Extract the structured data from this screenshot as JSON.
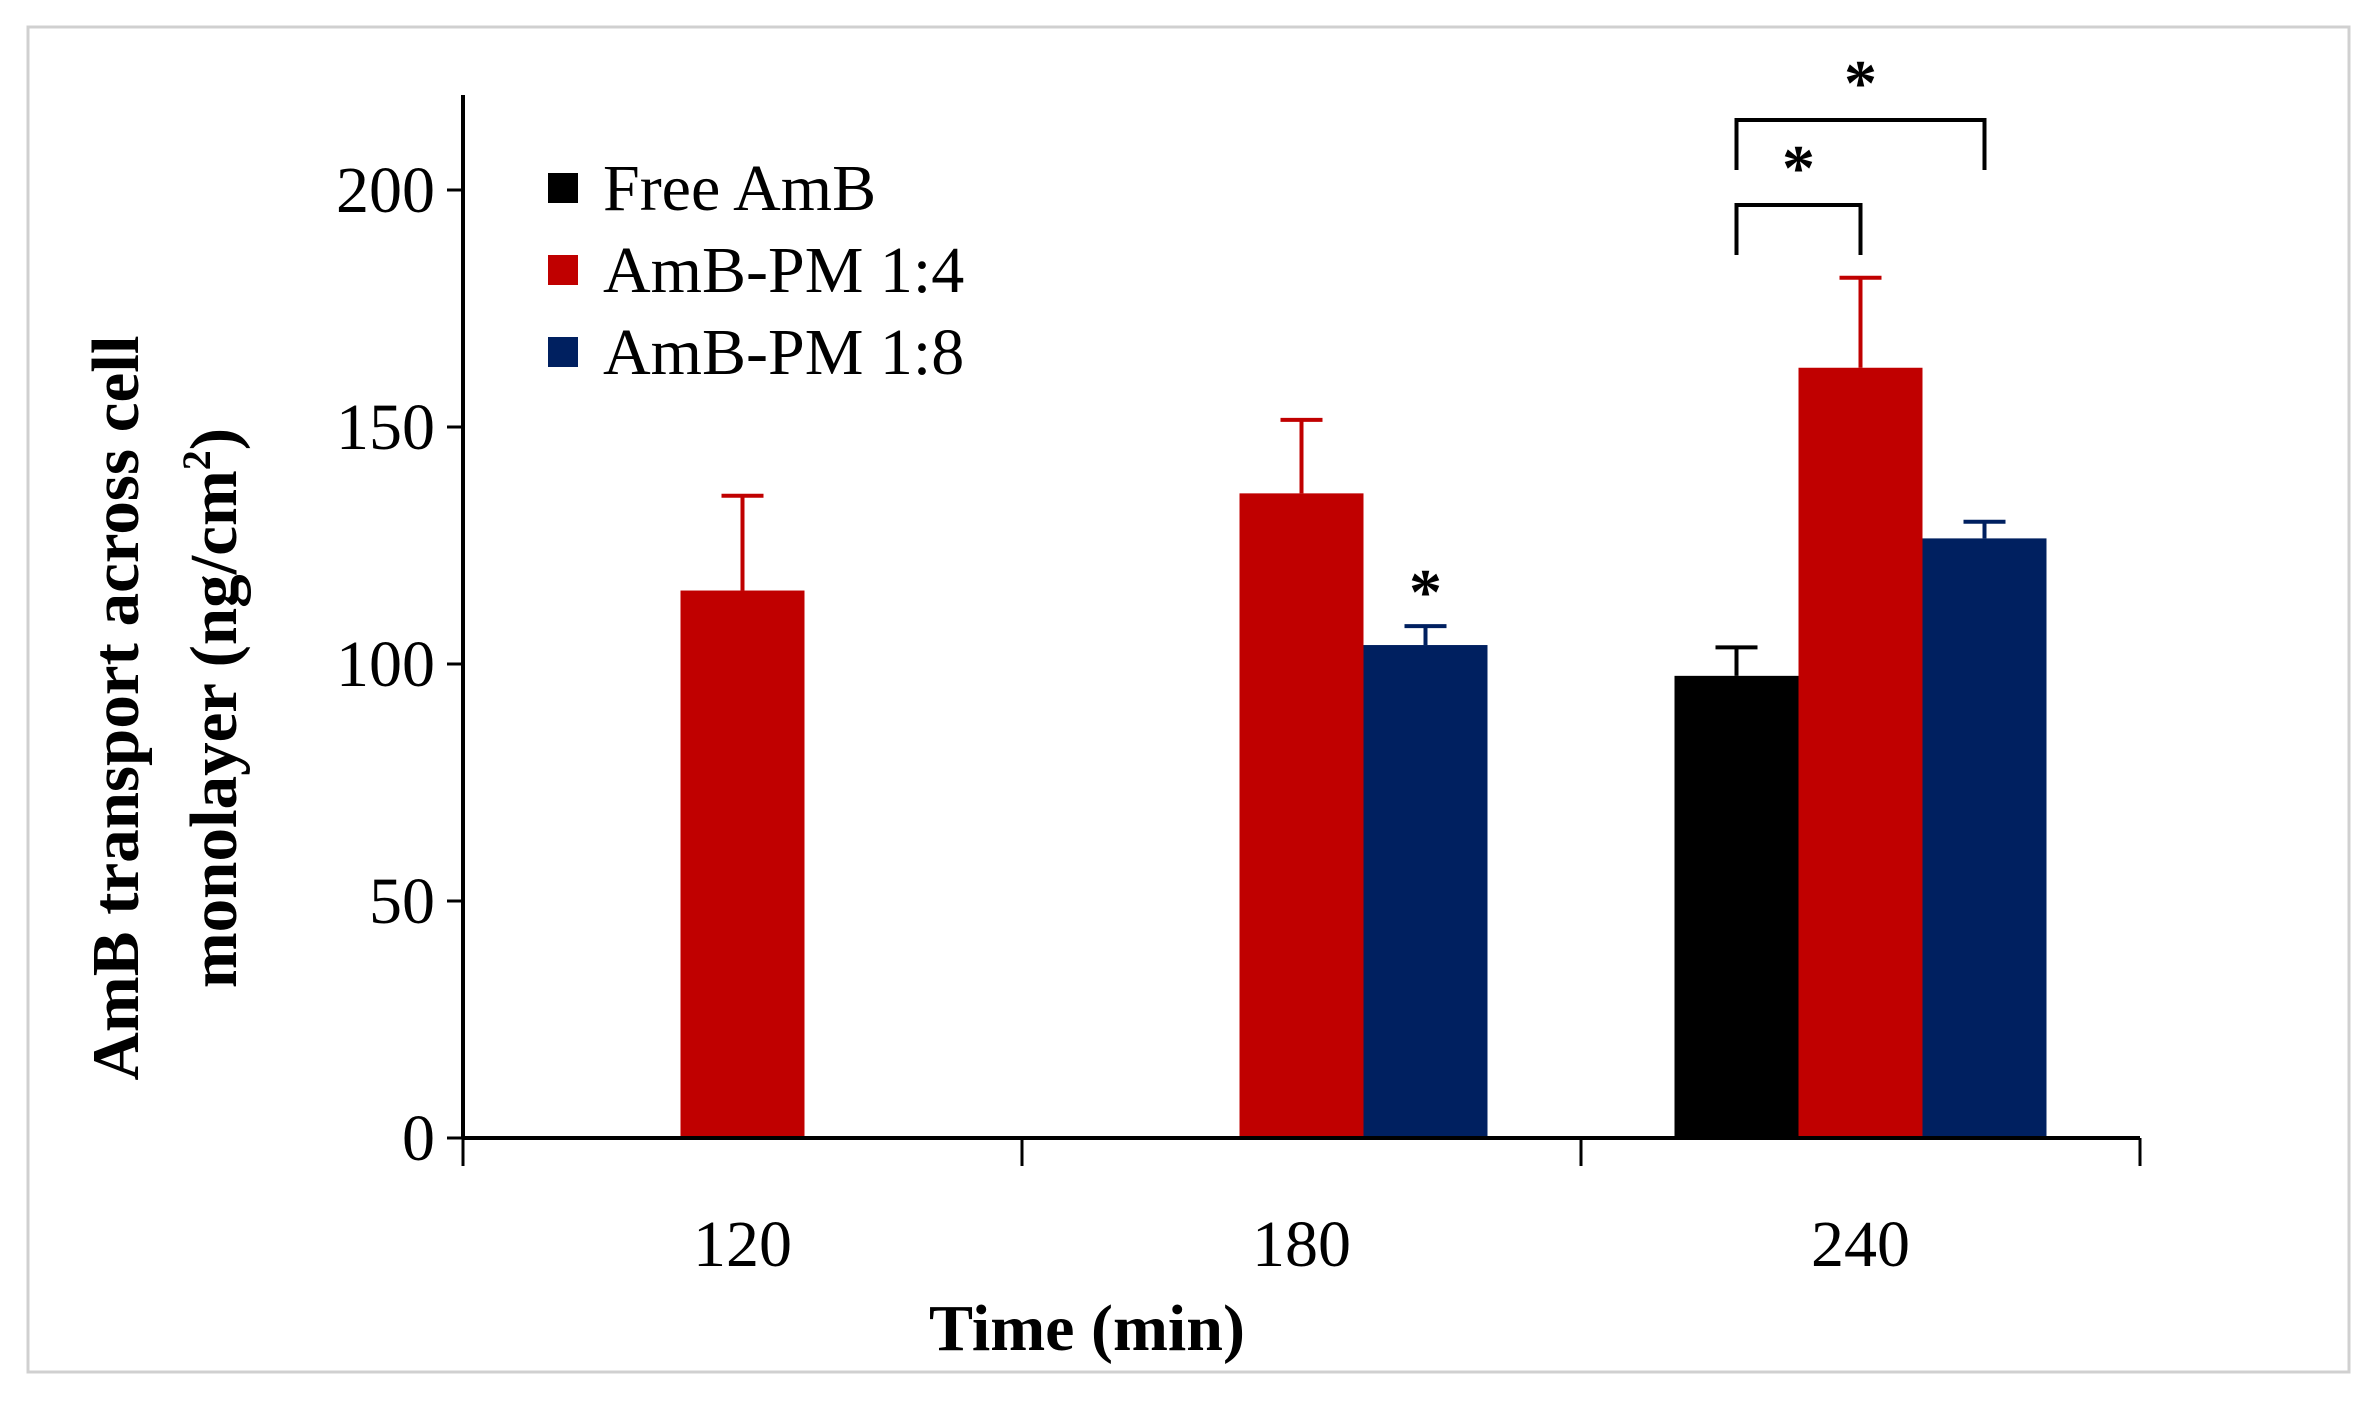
{
  "colors": {
    "series": [
      "#000000",
      "#c00000",
      "#002060"
    ],
    "frame": "#d0d0d0",
    "axis": "#000000"
  },
  "chart_data": {
    "type": "bar",
    "title": "",
    "xlabel": "Time (min)",
    "ylabel_lines": [
      "AmB transport across cell",
      "monolayer (ng/cm"
    ],
    "ylabel_superscript": "2",
    "ylabel_suffix": ")",
    "categories": [
      "120",
      "180",
      "240"
    ],
    "yticks": [
      0,
      50,
      100,
      150,
      200
    ],
    "ylim": [
      0,
      220
    ],
    "series": [
      {
        "name": "Free AmB",
        "values": [
          0,
          0,
          97.5
        ],
        "errors": [
          0,
          0,
          6
        ]
      },
      {
        "name": "AmB-PM 1:4",
        "values": [
          115.5,
          136,
          162.5
        ],
        "errors": [
          20,
          15.5,
          19
        ]
      },
      {
        "name": "AmB-PM 1:8",
        "values": [
          0,
          104,
          126.5
        ],
        "errors": [
          0,
          4,
          3.5
        ]
      }
    ],
    "annotations": [
      {
        "type": "star",
        "text": "*",
        "category": 1,
        "series": 2
      },
      {
        "type": "bracket",
        "text": "*",
        "category": 2,
        "from_series": 0,
        "to_series": 1
      },
      {
        "type": "bracket",
        "text": "*",
        "category": 2,
        "from_series": 0,
        "to_series": 2
      }
    ],
    "legend_position": "top-left"
  }
}
